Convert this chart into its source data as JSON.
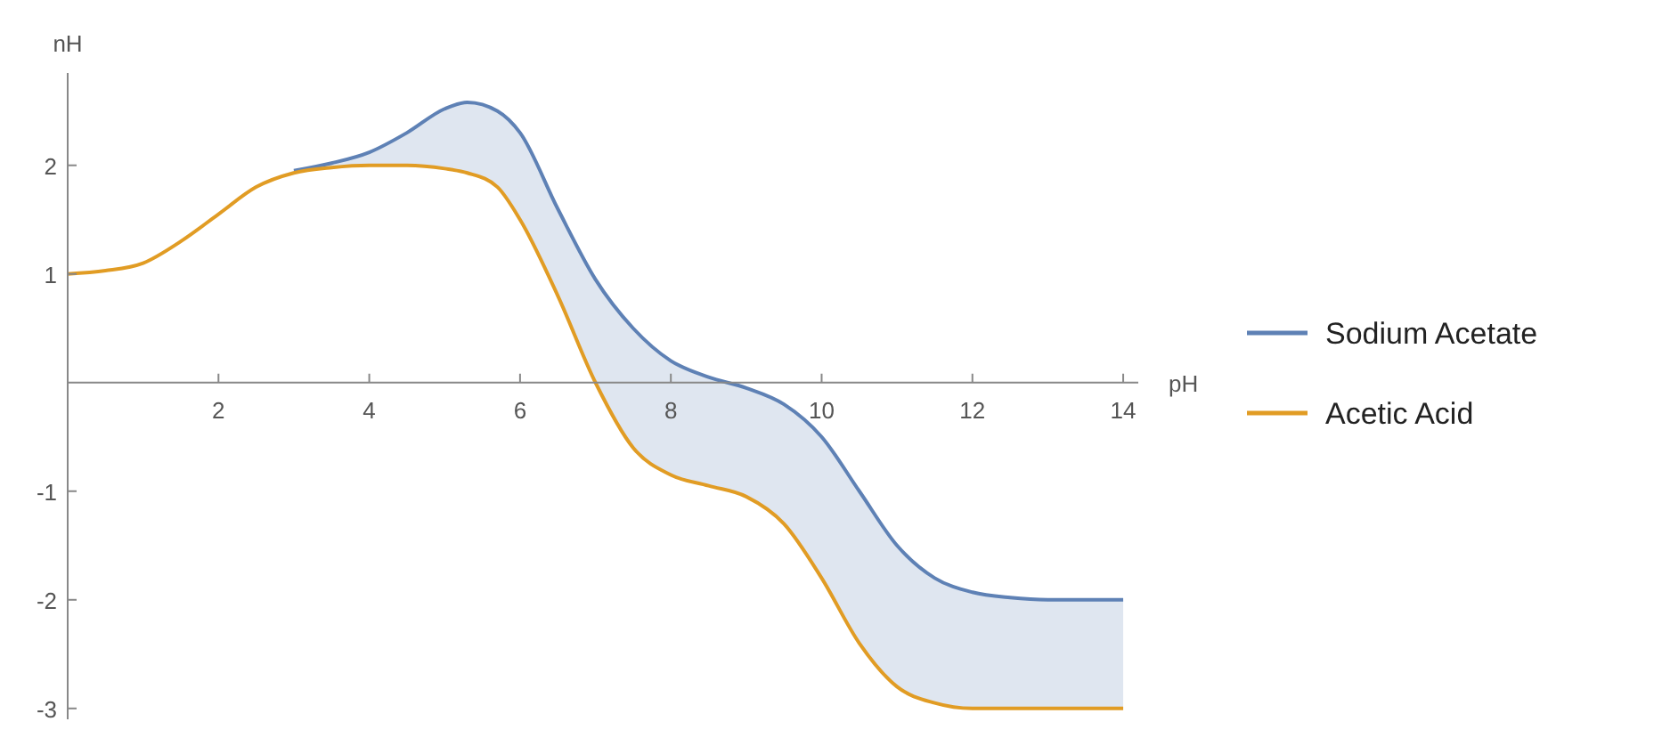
{
  "chart_data": {
    "type": "line",
    "xlabel": "pH",
    "ylabel": "nH",
    "xlim": [
      0,
      14.2
    ],
    "ylim": [
      -3.1,
      2.85
    ],
    "xticks": [
      2,
      4,
      6,
      8,
      10,
      12,
      14
    ],
    "yticks": [
      -3,
      -2,
      -1,
      1,
      2
    ],
    "grid": false,
    "legend": "right",
    "marker": "none",
    "line_style": "solid",
    "x": [
      0,
      0.5,
      1,
      1.5,
      2,
      2.5,
      3,
      3.5,
      4,
      4.5,
      5,
      5.3,
      5.7,
      6,
      6.5,
      7,
      7.5,
      8,
      8.5,
      9,
      9.5,
      10,
      10.5,
      11,
      11.5,
      12,
      12.5,
      13,
      14
    ],
    "series": [
      {
        "name": "Sodium Acetate",
        "color": "#5e81b5",
        "values": [
          null,
          null,
          null,
          null,
          null,
          null,
          1.95,
          2.02,
          2.12,
          2.3,
          2.52,
          2.58,
          2.5,
          2.3,
          1.6,
          0.95,
          0.5,
          0.2,
          0.05,
          -0.05,
          -0.2,
          -0.5,
          -1.0,
          -1.5,
          -1.8,
          -1.93,
          -1.98,
          -2.0,
          -2.0
        ],
        "upper": [
          1.0,
          1.03,
          1.1,
          1.3,
          1.55,
          1.8,
          1.95,
          2.02,
          2.12,
          2.3,
          2.52,
          2.58,
          2.5,
          2.3,
          1.6,
          0.95,
          0.5,
          0.2,
          0.05,
          -0.05,
          -0.2,
          -0.5,
          -1.0,
          -1.5,
          -1.8,
          -1.93,
          -1.98,
          -2.0,
          -2.0
        ],
        "lower": [
          1.0,
          1.03,
          1.1,
          1.3,
          1.55,
          1.8,
          1.93,
          1.98,
          2.0,
          2.0,
          1.97,
          1.93,
          1.8,
          1.5,
          0.8,
          0.0,
          -0.6,
          -0.85,
          -0.95,
          -1.05,
          -1.3,
          -1.8,
          -2.4,
          -2.8,
          -2.95,
          -3.0,
          -3.0,
          -3.0,
          -3.0
        ]
      },
      {
        "name": "Acetic Acid",
        "color": "#e19c24",
        "values": [
          1.0,
          1.03,
          1.1,
          1.3,
          1.55,
          1.8,
          1.93,
          1.98,
          2.0,
          2.0,
          1.97,
          1.93,
          1.8,
          1.5,
          0.8,
          0.0,
          -0.6,
          -0.85,
          -0.95,
          -1.05,
          -1.3,
          -1.8,
          -2.4,
          -2.8,
          -2.95,
          -3.0,
          -3.0,
          -3.0,
          -3.0
        ]
      }
    ]
  }
}
